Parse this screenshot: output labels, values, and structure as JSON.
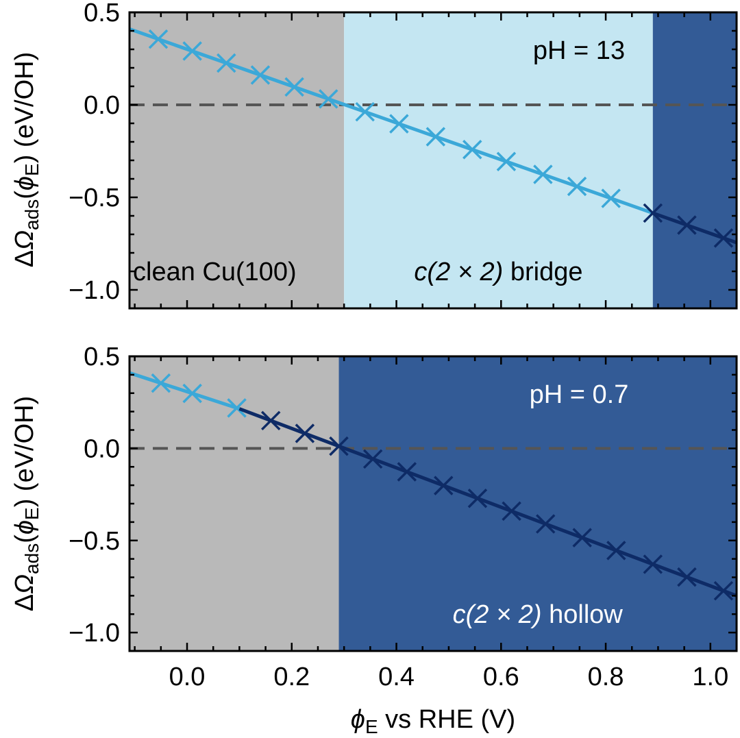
{
  "chart_data": {
    "type": "line",
    "xlabel": "ϕE vs RHE (V)",
    "ylabel": "ΔΩads(ϕE) (eV/OH)",
    "xlim": [
      -0.11,
      1.05
    ],
    "ylim": [
      -1.1,
      0.5
    ],
    "x_ticks": [
      "0.0",
      "0.2",
      "0.4",
      "0.6",
      "0.8",
      "1.0"
    ],
    "x_tick_values": [
      0.0,
      0.2,
      0.4,
      0.6,
      0.8,
      1.0
    ],
    "y_ticks": [
      "0.5",
      "0.0",
      "−0.5",
      "−1.0"
    ],
    "y_tick_values": [
      0.5,
      0.0,
      -0.5,
      -1.0
    ],
    "colors": {
      "clean_region": "#b9b9b9",
      "bridge_region": "#c4e6f2",
      "hollow_region": "#335b96",
      "bridge_line": "#3ba8d8",
      "hollow_line": "#0e2b66",
      "zero_line": "#555555"
    },
    "panels": [
      {
        "annotation": "pH = 13",
        "annotation_color": "#000000",
        "regions": [
          {
            "x0": -0.11,
            "x1": 0.3,
            "color": "clean_region",
            "label": "clean Cu(100)",
            "label_color": "#000000"
          },
          {
            "x0": 0.3,
            "x1": 0.89,
            "color": "bridge_region",
            "label_italic": "c(2 × 2)",
            "label_rest": " bridge",
            "label_color": "#000000"
          },
          {
            "x0": 0.89,
            "x1": 1.05,
            "color": "hollow_region",
            "label": "",
            "label_color": "#ffffff"
          }
        ],
        "series": [
          {
            "color": "bridge_line",
            "x0": -0.11,
            "y0": 0.41,
            "x1": 0.89,
            "y1": -0.585,
            "x": [
              -0.055,
              0.01,
              0.075,
              0.14,
              0.205,
              0.27,
              0.34,
              0.405,
              0.475,
              0.545,
              0.61,
              0.68,
              0.745,
              0.81
            ]
          },
          {
            "color": "hollow_line",
            "x0": 0.89,
            "y0": -0.585,
            "x1": 1.05,
            "y1": -0.745,
            "x": [
              0.89,
              0.955,
              1.025
            ]
          }
        ]
      },
      {
        "annotation": "pH = 0.7",
        "annotation_color": "#ffffff",
        "regions": [
          {
            "x0": -0.11,
            "x1": 0.29,
            "color": "clean_region",
            "label": "",
            "label_color": "#000000"
          },
          {
            "x0": 0.29,
            "x1": 1.05,
            "color": "hollow_region",
            "label_italic": "c(2 × 2)",
            "label_rest": " hollow",
            "label_color": "#ffffff"
          }
        ],
        "series": [
          {
            "color": "bridge_line",
            "x0": -0.11,
            "y0": 0.41,
            "x1": 0.1,
            "y1": 0.215,
            "x": [
              -0.05,
              0.01,
              0.095
            ]
          },
          {
            "color": "hollow_line",
            "x0": 0.1,
            "y0": 0.215,
            "x1": 1.05,
            "y1": -0.8,
            "x": [
              0.16,
              0.225,
              0.29,
              0.355,
              0.42,
              0.49,
              0.555,
              0.62,
              0.685,
              0.755,
              0.82,
              0.89,
              0.955,
              1.025
            ]
          }
        ]
      }
    ]
  }
}
